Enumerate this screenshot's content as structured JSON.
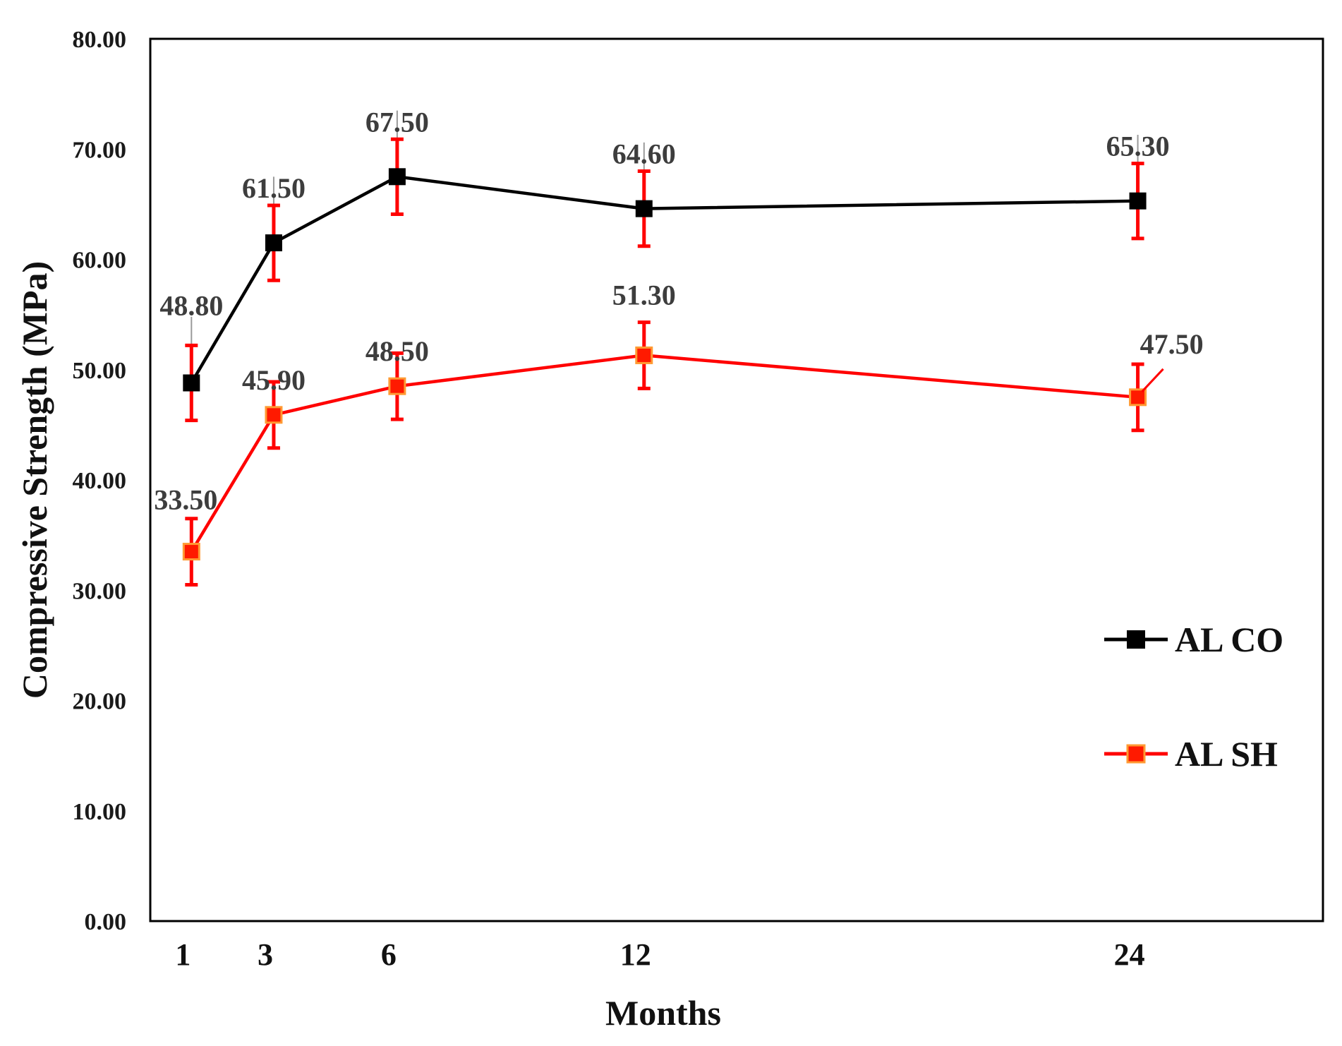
{
  "chart_data": {
    "type": "line",
    "title": "",
    "xlabel": "Months",
    "ylabel": "Compressive Strength (MPa)",
    "x": [
      1,
      3,
      6,
      12,
      24
    ],
    "x_tick_labels": [
      "1",
      "3",
      "6",
      "12",
      "24"
    ],
    "ylim": [
      0,
      80
    ],
    "y_tick_labels": [
      "0.00",
      "10.00",
      "20.00",
      "30.00",
      "40.00",
      "50.00",
      "60.00",
      "70.00",
      "80.00"
    ],
    "grid": false,
    "legend_position": "right",
    "series": [
      {
        "name": "AL CO",
        "color": "#000000",
        "marker_fill": "#000000",
        "values": [
          48.8,
          61.5,
          67.5,
          64.6,
          65.3
        ],
        "labels": [
          "48.80",
          "61.50",
          "67.50",
          "64.60",
          "65.30"
        ],
        "error": [
          3.4,
          3.4,
          3.4,
          3.4,
          3.4
        ]
      },
      {
        "name": "AL SH",
        "color": "#ff0000",
        "marker_fill": "#ff1a00",
        "marker_edge": "#ff9a33",
        "values": [
          33.5,
          45.9,
          48.5,
          51.3,
          47.5
        ],
        "labels": [
          "33.50",
          "45.90",
          "48.50",
          "51.30",
          "47.50"
        ],
        "error": [
          3.0,
          3.0,
          3.0,
          3.0,
          3.0
        ]
      }
    ],
    "error_bar_color": "#ff0000"
  }
}
